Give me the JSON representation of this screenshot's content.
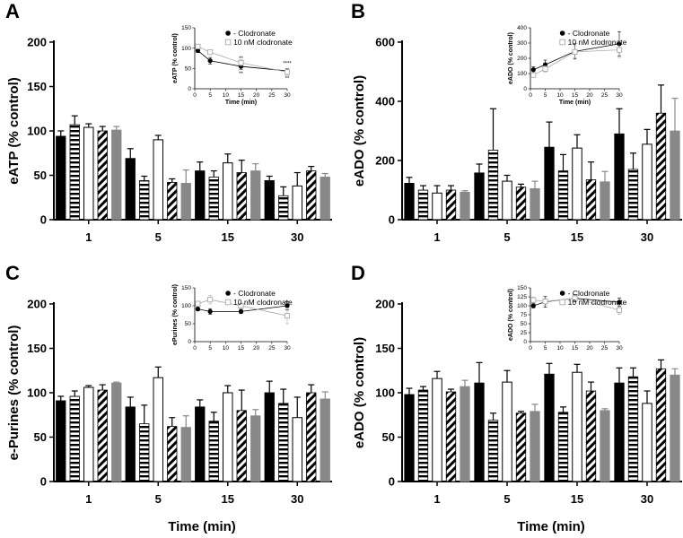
{
  "colors": {
    "black": "#000000",
    "gray": "#888888",
    "open_marker": "#aaaaaa",
    "white": "#ffffff"
  },
  "chart_data": [
    {
      "panel": "A",
      "type": "bar",
      "ylabel": "eATP (% control)",
      "xlabel": "",
      "categories": [
        "1",
        "5",
        "15",
        "30"
      ],
      "ylim": [
        0,
        200
      ],
      "yticks": [
        0,
        50,
        100,
        150,
        200
      ],
      "series_styles": [
        "black",
        "hstripe",
        "white",
        "diag",
        "gray"
      ],
      "series": [
        {
          "values": [
            94,
            69,
            55,
            44
          ],
          "errors": [
            6,
            11,
            10,
            5
          ]
        },
        {
          "values": [
            107,
            44,
            48,
            27
          ],
          "errors": [
            10,
            5,
            7,
            10
          ]
        },
        {
          "values": [
            104,
            90,
            64,
            38
          ],
          "errors": [
            4,
            5,
            10,
            15
          ]
        },
        {
          "values": [
            100,
            42,
            53,
            55
          ],
          "errors": [
            5,
            4,
            14,
            5
          ]
        },
        {
          "values": [
            101,
            41,
            55,
            48
          ],
          "errors": [
            4,
            15,
            8,
            4
          ]
        }
      ],
      "inset": {
        "type": "line",
        "xlabel": "Time (min)",
        "ylabel": "eATP (% control)",
        "xlim": [
          0,
          30
        ],
        "xticks": [
          0,
          5,
          10,
          15,
          20,
          25,
          30
        ],
        "ylim": [
          0,
          150
        ],
        "yticks": [
          0,
          50,
          100,
          150
        ],
        "series": [
          {
            "name": "- Clodronate",
            "marker": "filled-circle",
            "x": [
              1,
              5,
              15,
              30
            ],
            "y": [
              94,
              69,
              55,
              44
            ],
            "err": [
              5,
              8,
              7,
              5
            ]
          },
          {
            "name": "10 nM clodronate",
            "marker": "open-square",
            "x": [
              1,
              5,
              15,
              30
            ],
            "y": [
              104,
              90,
              64,
              41
            ],
            "err": [
              4,
              5,
              7,
              7
            ]
          }
        ],
        "annotations": [
          {
            "text": "**",
            "x": 15,
            "y": 71
          },
          {
            "text": "**",
            "x": 15,
            "y": 33
          },
          {
            "text": "****",
            "x": 30,
            "y": 58
          },
          {
            "text": "**",
            "x": 30,
            "y": 22
          }
        ]
      }
    },
    {
      "panel": "B",
      "type": "bar",
      "ylabel": "eADO (% control)",
      "xlabel": "",
      "categories": [
        "1",
        "5",
        "15",
        "30"
      ],
      "ylim": [
        0,
        600
      ],
      "yticks": [
        0,
        200,
        400,
        600
      ],
      "series_styles": [
        "black",
        "hstripe",
        "white",
        "diag",
        "gray"
      ],
      "series": [
        {
          "values": [
            123,
            158,
            245,
            290
          ],
          "errors": [
            20,
            30,
            85,
            85
          ]
        },
        {
          "values": [
            100,
            235,
            165,
            170
          ],
          "errors": [
            15,
            140,
            55,
            55
          ]
        },
        {
          "values": [
            90,
            130,
            242,
            255
          ],
          "errors": [
            25,
            20,
            45,
            50
          ]
        },
        {
          "values": [
            100,
            110,
            135,
            360
          ],
          "errors": [
            15,
            10,
            60,
            95
          ]
        },
        {
          "values": [
            93,
            105,
            128,
            300
          ],
          "errors": [
            5,
            25,
            35,
            110
          ]
        }
      ],
      "inset": {
        "type": "line",
        "xlabel": "Time (min)",
        "ylabel": "eADO (% control)",
        "xlim": [
          0,
          30
        ],
        "xticks": [
          0,
          5,
          10,
          15,
          20,
          25,
          30
        ],
        "ylim": [
          0,
          400
        ],
        "yticks": [
          0,
          100,
          200,
          300,
          400
        ],
        "series": [
          {
            "name": "- Clodronate",
            "marker": "filled-circle",
            "x": [
              1,
              5,
              15,
              30
            ],
            "y": [
              125,
              158,
              245,
              295
            ],
            "err": [
              20,
              30,
              50,
              80
            ]
          },
          {
            "name": "10 nM clodronate",
            "marker": "open-square",
            "x": [
              1,
              5,
              15,
              30
            ],
            "y": [
              90,
              130,
              242,
              255
            ],
            "err": [
              15,
              20,
              40,
              50
            ]
          }
        ],
        "annotations": []
      }
    },
    {
      "panel": "C",
      "type": "bar",
      "ylabel": "e-Purines (% control)",
      "xlabel": "Time (min)",
      "categories": [
        "1",
        "5",
        "15",
        "30"
      ],
      "ylim": [
        0,
        200
      ],
      "yticks": [
        0,
        50,
        100,
        150,
        200
      ],
      "series_styles": [
        "black",
        "hstripe",
        "white",
        "diag",
        "gray"
      ],
      "series": [
        {
          "values": [
            91,
            84,
            84,
            100
          ],
          "errors": [
            5,
            11,
            8,
            13
          ]
        },
        {
          "values": [
            96,
            65,
            68,
            88
          ],
          "errors": [
            6,
            21,
            10,
            16
          ]
        },
        {
          "values": [
            106,
            117,
            100,
            72
          ],
          "errors": [
            2,
            12,
            8,
            23
          ]
        },
        {
          "values": [
            103,
            62,
            80,
            100
          ],
          "errors": [
            6,
            10,
            23,
            9
          ]
        },
        {
          "values": [
            111,
            61,
            74,
            93
          ],
          "errors": [
            1,
            13,
            7,
            8
          ]
        }
      ],
      "inset": {
        "type": "line",
        "xlabel": "",
        "ylabel": "ePurines (% control)",
        "xlim": [
          0,
          30
        ],
        "xticks": [
          0,
          5,
          10,
          15,
          20,
          25,
          30
        ],
        "ylim": [
          0,
          150
        ],
        "yticks": [
          0,
          50,
          100,
          150
        ],
        "series": [
          {
            "name": "- Clodronate",
            "marker": "filled-circle",
            "x": [
              1,
              5,
              15,
              30
            ],
            "y": [
              91,
              84,
              84,
              100
            ],
            "err": [
              5,
              8,
              6,
              12
            ]
          },
          {
            "name": "10 nM clodronate",
            "marker": "open-square",
            "x": [
              1,
              5,
              15,
              30
            ],
            "y": [
              106,
              117,
              100,
              72
            ],
            "err": [
              4,
              12,
              7,
              22
            ]
          }
        ],
        "annotations": []
      }
    },
    {
      "panel": "D",
      "type": "bar",
      "ylabel": "eADO (% control)",
      "xlabel": "Time (min)",
      "categories": [
        "1",
        "5",
        "15",
        "30"
      ],
      "ylim": [
        0,
        200
      ],
      "yticks": [
        0,
        50,
        100,
        150,
        200
      ],
      "series_styles": [
        "black",
        "hstripe",
        "white",
        "diag",
        "gray"
      ],
      "series": [
        {
          "values": [
            98,
            111,
            121,
            111
          ],
          "errors": [
            7,
            23,
            12,
            17
          ]
        },
        {
          "values": [
            103,
            69,
            78,
            118
          ],
          "errors": [
            4,
            8,
            6,
            10
          ]
        },
        {
          "values": [
            116,
            112,
            123,
            88
          ],
          "errors": [
            8,
            13,
            9,
            14
          ]
        },
        {
          "values": [
            101,
            77,
            102,
            127
          ],
          "errors": [
            3,
            2,
            10,
            10
          ]
        },
        {
          "values": [
            107,
            79,
            80,
            120
          ],
          "errors": [
            7,
            8,
            2,
            7
          ]
        }
      ],
      "inset": {
        "type": "line",
        "xlabel": "",
        "ylabel": "eADO (% control)",
        "xlim": [
          0,
          30
        ],
        "xticks": [
          0,
          5,
          10,
          15,
          20,
          25,
          30
        ],
        "ylim": [
          0,
          150
        ],
        "yticks": [
          0,
          25,
          50,
          75,
          100,
          125,
          150
        ],
        "series": [
          {
            "name": "- Clodronate",
            "marker": "filled-circle",
            "x": [
              1,
              5,
              15,
              30
            ],
            "y": [
              100,
              111,
              121,
              110
            ],
            "err": [
              6,
              15,
              10,
              12
            ]
          },
          {
            "name": "10 nM clodronate",
            "marker": "open-square",
            "x": [
              1,
              5,
              15,
              30
            ],
            "y": [
              116,
              112,
              121,
              88
            ],
            "err": [
              8,
              10,
              8,
              12
            ]
          }
        ],
        "annotations": []
      }
    }
  ]
}
